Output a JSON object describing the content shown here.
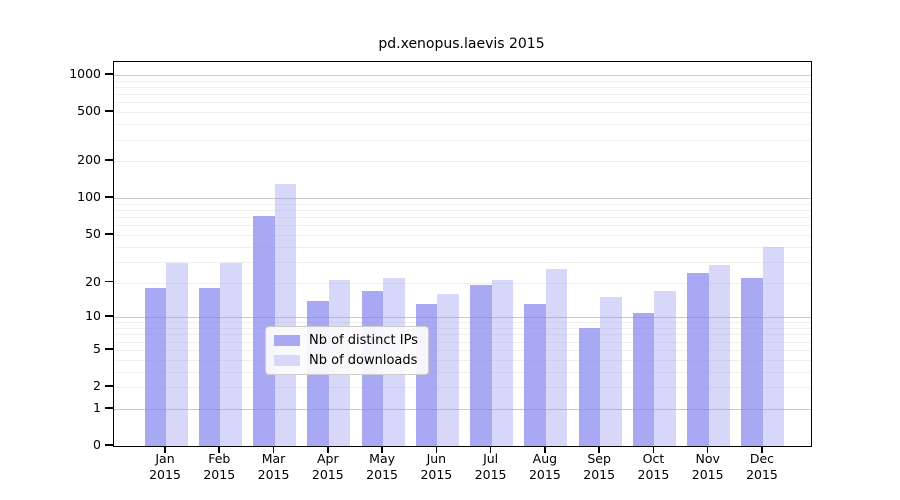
{
  "chart_data": {
    "type": "bar",
    "title": "pd.xenopus.laevis 2015",
    "categories": [
      "Jan",
      "Feb",
      "Mar",
      "Apr",
      "May",
      "Jun",
      "Jul",
      "Aug",
      "Sep",
      "Oct",
      "Nov",
      "Dec"
    ],
    "category_year": "2015",
    "series": [
      {
        "name": "Nb of distinct IPs",
        "values": [
          18,
          18,
          71,
          14,
          17,
          13,
          19,
          13,
          8,
          11,
          24,
          22
        ],
        "fill_rgba": "rgba(134,134,238,0.72)",
        "swatch_hex": "#a8a8f3"
      },
      {
        "name": "Nb of downloads",
        "values": [
          29,
          29,
          130,
          21,
          22,
          16,
          21,
          26,
          15,
          17,
          28,
          40
        ],
        "fill_rgba": "rgba(150,150,240,0.38)",
        "swatch_hex": "#d7d7f9"
      }
    ],
    "yaxis": {
      "scale": "log1p",
      "tick_values": [
        1000,
        500,
        200,
        100,
        50,
        20,
        10,
        5,
        2,
        1,
        0
      ],
      "minor_gridlines": [
        2,
        3,
        4,
        5,
        6,
        7,
        8,
        9,
        20,
        30,
        40,
        50,
        60,
        70,
        80,
        90,
        200,
        300,
        400,
        500,
        600,
        700,
        800,
        900
      ],
      "major_gridlines": [
        1,
        10,
        100,
        1000
      ],
      "ylim": [
        0,
        1000
      ]
    },
    "grid": true,
    "legend_position": "inside-bottom-center",
    "colors": {
      "major_grid": "#c9c9c9",
      "minor_grid": "#efefef",
      "axis": "#000000"
    }
  }
}
